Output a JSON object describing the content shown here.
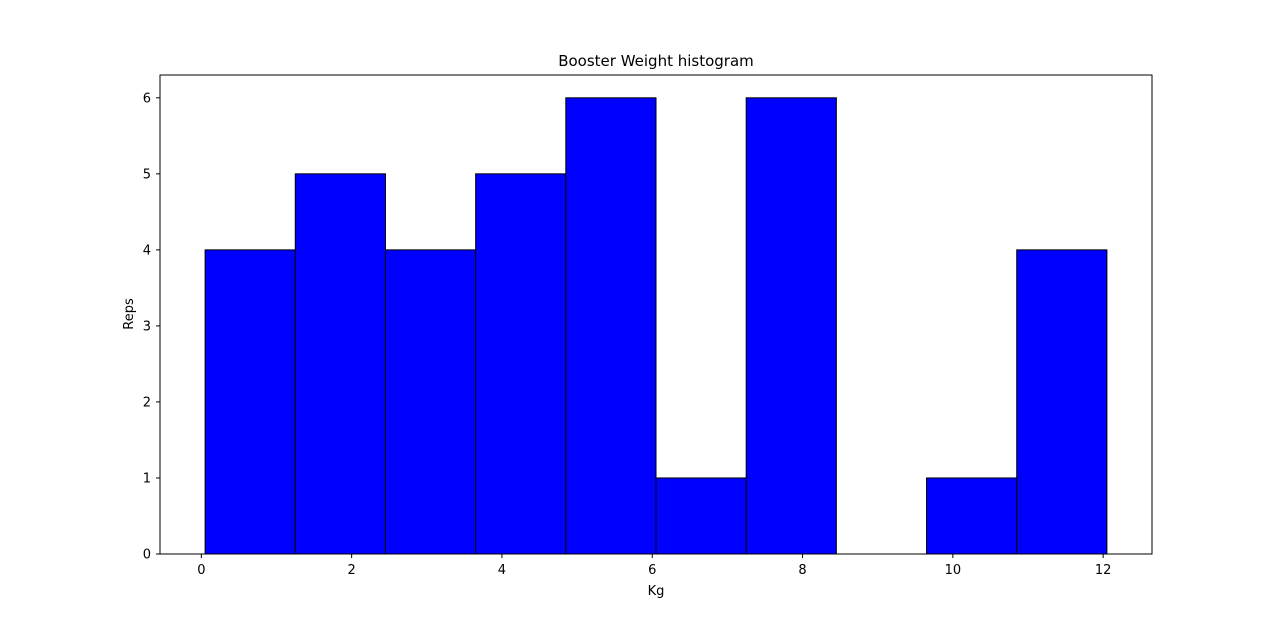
{
  "chart_data": {
    "type": "bar",
    "title": "Booster Weight histogram",
    "xlabel": "Kg",
    "ylabel": "Reps",
    "bin_edges": [
      0.05,
      1.25,
      2.45,
      3.65,
      4.85,
      6.05,
      7.25,
      8.45,
      9.65,
      10.85,
      12.05
    ],
    "values": [
      4,
      5,
      4,
      5,
      6,
      1,
      6,
      0,
      1,
      4
    ],
    "xlim": [
      -0.55,
      12.65
    ],
    "ylim": [
      0,
      6.3
    ],
    "xticks": [
      0,
      2,
      4,
      6,
      8,
      10,
      12
    ],
    "yticks": [
      0,
      1,
      2,
      3,
      4,
      5,
      6
    ],
    "bar_color": "#0000ff",
    "edge_color": "#000000",
    "grid": false,
    "legend": "none"
  }
}
